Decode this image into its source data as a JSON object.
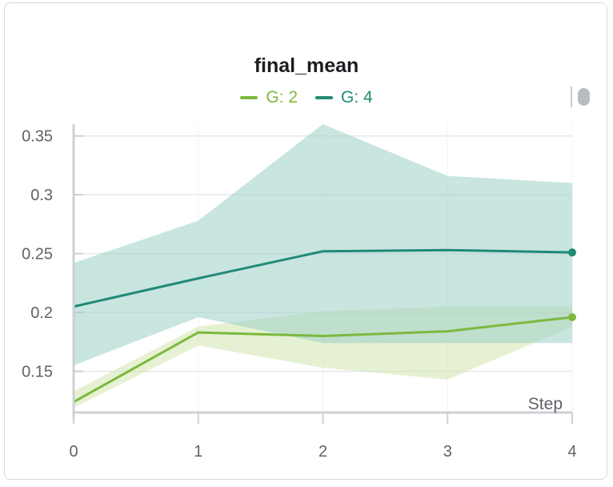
{
  "chart_data": {
    "type": "line",
    "title": "final_mean",
    "xlabel": "Step",
    "ylabel": "",
    "x": [
      0,
      1,
      2,
      3,
      4
    ],
    "xlim": [
      0,
      4
    ],
    "ylim": [
      0.115,
      0.36
    ],
    "x_ticks": [
      "0",
      "1",
      "2",
      "3",
      "4"
    ],
    "y_ticks": [
      {
        "value": 0.15,
        "label": "0.15"
      },
      {
        "value": 0.2,
        "label": "0.2"
      },
      {
        "value": 0.25,
        "label": "0.25"
      },
      {
        "value": 0.3,
        "label": "0.3"
      },
      {
        "value": 0.35,
        "label": "0.35"
      }
    ],
    "grid": true,
    "legend_position": "top-center",
    "series": [
      {
        "name": "G: 2",
        "color": "#7cb83e",
        "band_color": "#cfe6ad",
        "values": [
          0.124,
          0.183,
          0.18,
          0.184,
          0.196
        ],
        "band_low": [
          0.119,
          0.172,
          0.153,
          0.143,
          0.188
        ],
        "band_high": [
          0.133,
          0.188,
          0.201,
          0.205,
          0.205
        ]
      },
      {
        "name": "G: 4",
        "color": "#1f8a76",
        "band_color": "#9ccfc7",
        "values": [
          0.205,
          0.229,
          0.252,
          0.253,
          0.251
        ],
        "band_low": [
          0.155,
          0.196,
          0.174,
          0.174,
          0.174
        ],
        "band_high": [
          0.242,
          0.278,
          0.36,
          0.316,
          0.31
        ]
      }
    ]
  }
}
